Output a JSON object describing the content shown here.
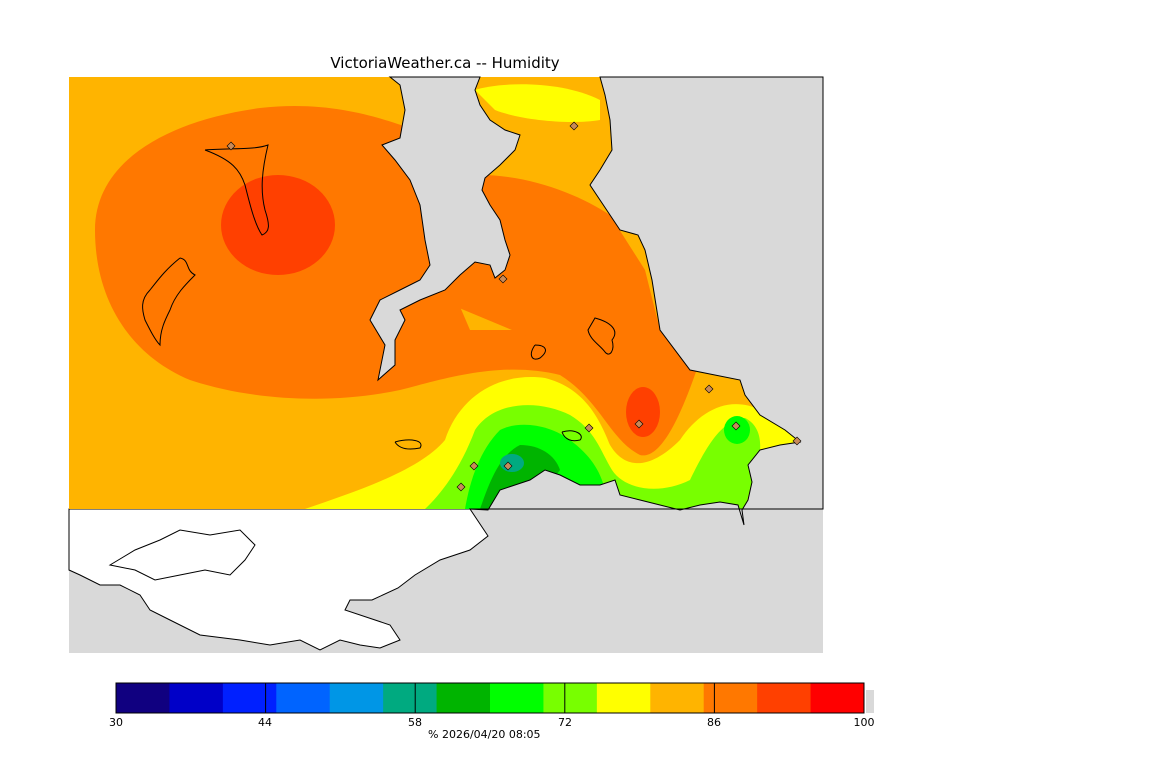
{
  "title": "VictoriaWeather.ca -- Humidity",
  "colorbar": {
    "min": 30,
    "max": 100,
    "ticks": [
      "30",
      "44",
      "58",
      "72",
      "86",
      "100"
    ],
    "caption": "%  2026/04/20 08:05",
    "colors": [
      "#100080",
      "#0000c8",
      "#0020ff",
      "#0064ff",
      "#0096e6",
      "#00aa80",
      "#00b400",
      "#00ff00",
      "#78ff00",
      "#ffff00",
      "#ffb400",
      "#ff7800",
      "#ff4000",
      "#ff0000"
    ]
  },
  "map": {
    "background_color": "#d9d9d9",
    "land_out_of_domain_color": "#ffffff",
    "station_marker": "diamond-icon"
  }
}
